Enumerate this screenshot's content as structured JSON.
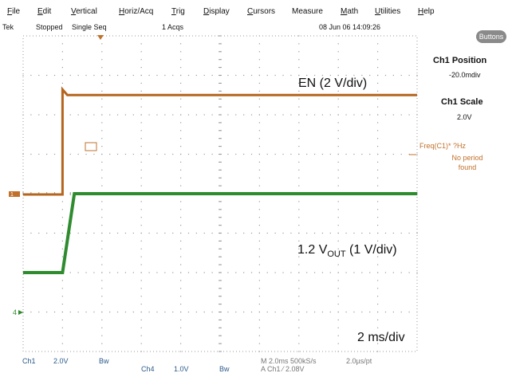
{
  "menu": [
    {
      "first": "F",
      "rest": "ile"
    },
    {
      "first": "E",
      "rest": "dit"
    },
    {
      "first": "V",
      "rest": "ertical"
    },
    {
      "first": "H",
      "rest": "oriz/Acq"
    },
    {
      "first": "T",
      "rest": "rig"
    },
    {
      "first": "D",
      "rest": "isplay"
    },
    {
      "first": "C",
      "rest": "ursors"
    },
    {
      "first": "",
      "rest": "Measure"
    },
    {
      "first": "M",
      "rest": "ath"
    },
    {
      "first": "U",
      "rest": "tilities"
    },
    {
      "first": "H",
      "rest": "elp"
    }
  ],
  "status": {
    "brand": "Tek",
    "state": "Stopped",
    "mode": "Single Seq",
    "acqs": "1 Acqs",
    "datetime": "08 Jun 06 14:09:26"
  },
  "side": {
    "buttons_label": "Buttons",
    "ch1_position_title": "Ch1 Position",
    "ch1_position_value": "-20.0mdiv",
    "ch1_scale_title": "Ch1 Scale",
    "ch1_scale_value": "2.0V",
    "freq_line1": "Freq(C1)*    ?Hz",
    "freq_line2": "No period",
    "freq_line3": "found"
  },
  "annotations": {
    "en_label": "EN (2 V/div)",
    "vout_prefix": "1.2 V",
    "vout_sub": "OUT",
    "vout_suffix": " (1 V/div)",
    "timebase": "2 ms/div"
  },
  "markers": {
    "ch4_marker": "4",
    "ch1_marker": "1"
  },
  "bottom": {
    "ch1": "Ch1",
    "ch1_scale": "2.0V",
    "ch1_bw": "Bw",
    "ch4": "Ch4",
    "ch4_scale": "1.0V",
    "ch4_bw": "Bw",
    "horiz": "M 2.0ms 500kS/s",
    "pt": "2.0µs/pt",
    "trig": "A  Ch1  ⁄  2.08V"
  },
  "colors": {
    "ch1": "#b5651d",
    "ch4": "#2e8b2e",
    "grid": "#9a9a9a"
  },
  "traces": {
    "ch1_low_div": -0.02,
    "ch1_high_div": 2.5,
    "ch1_edge_time_div": 1.0,
    "ch4_low_div": -2.0,
    "ch4_high_div": 0.0,
    "ch4_rise_start_div": 1.0,
    "ch4_rise_end_div": 1.3
  }
}
